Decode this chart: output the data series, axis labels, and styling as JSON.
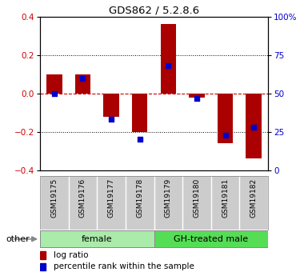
{
  "title": "GDS862 / 5.2.8.6",
  "samples": [
    "GSM19175",
    "GSM19176",
    "GSM19177",
    "GSM19178",
    "GSM19179",
    "GSM19180",
    "GSM19181",
    "GSM19182"
  ],
  "log_ratio": [
    0.1,
    0.1,
    -0.12,
    -0.2,
    0.36,
    -0.02,
    -0.26,
    -0.34
  ],
  "percentile_rank": [
    50,
    60,
    33,
    20,
    68,
    47,
    23,
    28
  ],
  "groups": [
    {
      "label": "female",
      "start": 0,
      "end": 4,
      "color": "#aaeaaa"
    },
    {
      "label": "GH-treated male",
      "start": 4,
      "end": 8,
      "color": "#55dd55"
    }
  ],
  "ylim": [
    -0.4,
    0.4
  ],
  "yticks_left": [
    -0.4,
    -0.2,
    0.0,
    0.2,
    0.4
  ],
  "yticks_right": [
    0,
    25,
    50,
    75,
    100
  ],
  "bar_color": "#aa0000",
  "dot_color": "#0000cc",
  "zero_line_color": "#cc0000",
  "grid_color": "#000000",
  "bg_color": "#ffffff",
  "plot_bg": "#ffffff",
  "label_box_color": "#cccccc",
  "other_label": "other",
  "legend_log_ratio": "log ratio",
  "legend_percentile": "percentile rank within the sample",
  "bar_width": 0.55,
  "dot_size": 25
}
